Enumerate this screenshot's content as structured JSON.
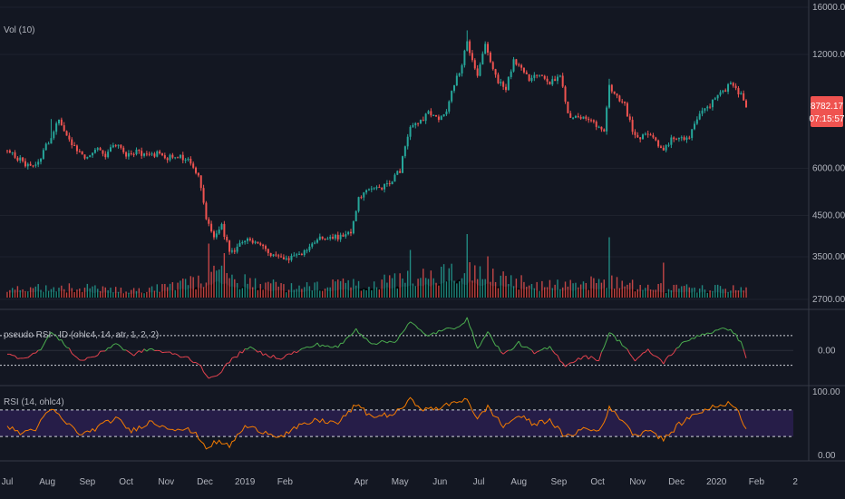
{
  "colors": {
    "background": "#131722",
    "grid": "#1e222d",
    "pane_border": "#363a45",
    "up": "#26a69a",
    "down": "#ef5350",
    "volume_shadow": "#000000",
    "pseudo_up": "#4caf50",
    "pseudo_down": "#e5434f",
    "rsi_line": "#f57c00",
    "rsi_band": "#2a1f4f",
    "level_line": "#d1d4dc",
    "axis_text": "#b2b5be",
    "badge": "#ef5350"
  },
  "chart_data": [
    {
      "type": "candlestick",
      "pane": "price",
      "title": "Vol (10)",
      "y_scale": "log",
      "y_ticks": [
        "16000.00",
        "12000.00",
        "6000.00",
        "4500.00",
        "3500.00",
        "2700.00"
      ],
      "y_tick_values": [
        16000,
        12000,
        6000,
        4500,
        3500,
        2700
      ],
      "ylim": [
        2700,
        16000
      ],
      "price_badge": "8782.17",
      "countdown_badge": "07:15:57",
      "price_path": [
        {
          "d": 0,
          "v": 6700
        },
        {
          "d": 10,
          "v": 6300
        },
        {
          "d": 18,
          "v": 6050
        },
        {
          "d": 26,
          "v": 6400
        },
        {
          "d": 34,
          "v": 7300
        },
        {
          "d": 40,
          "v": 8050
        },
        {
          "d": 46,
          "v": 7450
        },
        {
          "d": 52,
          "v": 6800
        },
        {
          "d": 60,
          "v": 6450
        },
        {
          "d": 68,
          "v": 6750
        },
        {
          "d": 76,
          "v": 6500
        },
        {
          "d": 84,
          "v": 7000
        },
        {
          "d": 92,
          "v": 6550
        },
        {
          "d": 100,
          "v": 6650
        },
        {
          "d": 108,
          "v": 6500
        },
        {
          "d": 116,
          "v": 6550
        },
        {
          "d": 124,
          "v": 6400
        },
        {
          "d": 132,
          "v": 6450
        },
        {
          "d": 140,
          "v": 6300
        },
        {
          "d": 148,
          "v": 5800
        },
        {
          "d": 154,
          "v": 4400
        },
        {
          "d": 160,
          "v": 3900
        },
        {
          "d": 166,
          "v": 4200
        },
        {
          "d": 172,
          "v": 3600
        },
        {
          "d": 178,
          "v": 3700
        },
        {
          "d": 186,
          "v": 3900
        },
        {
          "d": 194,
          "v": 3750
        },
        {
          "d": 202,
          "v": 3600
        },
        {
          "d": 210,
          "v": 3500
        },
        {
          "d": 218,
          "v": 3450
        },
        {
          "d": 226,
          "v": 3550
        },
        {
          "d": 234,
          "v": 3750
        },
        {
          "d": 242,
          "v": 3900
        },
        {
          "d": 250,
          "v": 3950
        },
        {
          "d": 258,
          "v": 3950
        },
        {
          "d": 266,
          "v": 4050
        },
        {
          "d": 272,
          "v": 5000
        },
        {
          "d": 280,
          "v": 5250
        },
        {
          "d": 288,
          "v": 5300
        },
        {
          "d": 296,
          "v": 5500
        },
        {
          "d": 304,
          "v": 5900
        },
        {
          "d": 312,
          "v": 7800
        },
        {
          "d": 318,
          "v": 7900
        },
        {
          "d": 326,
          "v": 8400
        },
        {
          "d": 334,
          "v": 8000
        },
        {
          "d": 340,
          "v": 8600
        },
        {
          "d": 346,
          "v": 10000
        },
        {
          "d": 352,
          "v": 11200
        },
        {
          "d": 356,
          "v": 13200
        },
        {
          "d": 360,
          "v": 11400
        },
        {
          "d": 364,
          "v": 10400
        },
        {
          "d": 370,
          "v": 12600
        },
        {
          "d": 374,
          "v": 11400
        },
        {
          "d": 380,
          "v": 10200
        },
        {
          "d": 386,
          "v": 9800
        },
        {
          "d": 392,
          "v": 11600
        },
        {
          "d": 398,
          "v": 11100
        },
        {
          "d": 404,
          "v": 10400
        },
        {
          "d": 412,
          "v": 10500
        },
        {
          "d": 420,
          "v": 10100
        },
        {
          "d": 428,
          "v": 10400
        },
        {
          "d": 434,
          "v": 8300
        },
        {
          "d": 442,
          "v": 8200
        },
        {
          "d": 450,
          "v": 8000
        },
        {
          "d": 456,
          "v": 7850
        },
        {
          "d": 462,
          "v": 7400
        },
        {
          "d": 466,
          "v": 9800
        },
        {
          "d": 472,
          "v": 9200
        },
        {
          "d": 478,
          "v": 8800
        },
        {
          "d": 484,
          "v": 7500
        },
        {
          "d": 490,
          "v": 7200
        },
        {
          "d": 496,
          "v": 7500
        },
        {
          "d": 502,
          "v": 7100
        },
        {
          "d": 508,
          "v": 6700
        },
        {
          "d": 514,
          "v": 7200
        },
        {
          "d": 520,
          "v": 7300
        },
        {
          "d": 528,
          "v": 7200
        },
        {
          "d": 534,
          "v": 8100
        },
        {
          "d": 542,
          "v": 8700
        },
        {
          "d": 550,
          "v": 9300
        },
        {
          "d": 556,
          "v": 9700
        },
        {
          "d": 560,
          "v": 10200
        },
        {
          "d": 564,
          "v": 9700
        },
        {
          "d": 568,
          "v": 9400
        },
        {
          "d": 572,
          "v": 8750
        }
      ],
      "spikes": [
        {
          "d": 34,
          "v": 8100
        },
        {
          "d": 356,
          "v": 13900
        },
        {
          "d": 370,
          "v": 13000
        },
        {
          "d": 466,
          "v": 10350
        },
        {
          "d": 508,
          "v": 6400
        }
      ]
    },
    {
      "type": "bar",
      "pane": "volume",
      "overlay_on": "price",
      "relative_levels": [
        {
          "d": 0,
          "v": 0.15
        },
        {
          "d": 40,
          "v": 0.2
        },
        {
          "d": 100,
          "v": 0.12
        },
        {
          "d": 150,
          "v": 0.3
        },
        {
          "d": 160,
          "v": 0.45
        },
        {
          "d": 180,
          "v": 0.3
        },
        {
          "d": 220,
          "v": 0.18
        },
        {
          "d": 270,
          "v": 0.25
        },
        {
          "d": 320,
          "v": 0.35
        },
        {
          "d": 350,
          "v": 0.5
        },
        {
          "d": 372,
          "v": 0.38
        },
        {
          "d": 420,
          "v": 0.22
        },
        {
          "d": 466,
          "v": 0.3
        },
        {
          "d": 500,
          "v": 0.18
        },
        {
          "d": 572,
          "v": 0.15
        }
      ],
      "volume_spikes": [
        {
          "d": 156,
          "v": 0.85
        },
        {
          "d": 168,
          "v": 0.7
        },
        {
          "d": 312,
          "v": 0.75
        },
        {
          "d": 356,
          "v": 1.0
        },
        {
          "d": 372,
          "v": 0.65
        },
        {
          "d": 466,
          "v": 0.95
        },
        {
          "d": 508,
          "v": 0.55
        }
      ]
    },
    {
      "type": "line",
      "pane": "pseudo_rsi",
      "title": "pseudo RSI - ID (ohlc4, 14, atr, 1, 2, 2)",
      "y_ticks": [
        "0.00"
      ],
      "zero_level": 0,
      "upper_level": 1,
      "lower_level": -1,
      "ylim": [
        -2.3,
        2.7
      ],
      "path": [
        {
          "d": 0,
          "v": -0.3
        },
        {
          "d": 12,
          "v": -0.5
        },
        {
          "d": 24,
          "v": -0.1
        },
        {
          "d": 34,
          "v": 1.2
        },
        {
          "d": 46,
          "v": 0.3
        },
        {
          "d": 56,
          "v": -0.7
        },
        {
          "d": 70,
          "v": -0.3
        },
        {
          "d": 84,
          "v": 0.5
        },
        {
          "d": 96,
          "v": -0.3
        },
        {
          "d": 110,
          "v": 0.1
        },
        {
          "d": 126,
          "v": -0.2
        },
        {
          "d": 140,
          "v": -0.5
        },
        {
          "d": 150,
          "v": -1.0
        },
        {
          "d": 156,
          "v": -2.0
        },
        {
          "d": 164,
          "v": -1.5
        },
        {
          "d": 174,
          "v": -0.6
        },
        {
          "d": 186,
          "v": 0.2
        },
        {
          "d": 200,
          "v": -0.3
        },
        {
          "d": 212,
          "v": -0.5
        },
        {
          "d": 226,
          "v": 0.0
        },
        {
          "d": 240,
          "v": 0.4
        },
        {
          "d": 256,
          "v": 0.2
        },
        {
          "d": 270,
          "v": 1.4
        },
        {
          "d": 282,
          "v": 0.5
        },
        {
          "d": 300,
          "v": 0.6
        },
        {
          "d": 312,
          "v": 1.9
        },
        {
          "d": 324,
          "v": 1.0
        },
        {
          "d": 336,
          "v": 1.3
        },
        {
          "d": 348,
          "v": 1.6
        },
        {
          "d": 356,
          "v": 2.1
        },
        {
          "d": 364,
          "v": 0.2
        },
        {
          "d": 372,
          "v": 1.2
        },
        {
          "d": 384,
          "v": -0.3
        },
        {
          "d": 396,
          "v": 0.5
        },
        {
          "d": 408,
          "v": -0.2
        },
        {
          "d": 420,
          "v": 0.2
        },
        {
          "d": 432,
          "v": -1.0
        },
        {
          "d": 446,
          "v": -0.4
        },
        {
          "d": 458,
          "v": -0.6
        },
        {
          "d": 466,
          "v": 1.2
        },
        {
          "d": 478,
          "v": 0.3
        },
        {
          "d": 486,
          "v": -0.7
        },
        {
          "d": 496,
          "v": 0.0
        },
        {
          "d": 508,
          "v": -0.8
        },
        {
          "d": 520,
          "v": 0.3
        },
        {
          "d": 534,
          "v": 1.0
        },
        {
          "d": 548,
          "v": 1.3
        },
        {
          "d": 560,
          "v": 1.5
        },
        {
          "d": 568,
          "v": 0.5
        },
        {
          "d": 572,
          "v": -0.4
        }
      ]
    },
    {
      "type": "line",
      "pane": "rsi",
      "title": "RSI (14, ohlc4)",
      "y_ticks": [
        "100.00",
        "0.00"
      ],
      "upper_band": 70,
      "lower_band": 30,
      "ylim": [
        0,
        100
      ],
      "path": [
        {
          "d": 0,
          "v": 45
        },
        {
          "d": 10,
          "v": 35
        },
        {
          "d": 22,
          "v": 42
        },
        {
          "d": 34,
          "v": 72
        },
        {
          "d": 46,
          "v": 50
        },
        {
          "d": 58,
          "v": 32
        },
        {
          "d": 70,
          "v": 44
        },
        {
          "d": 84,
          "v": 58
        },
        {
          "d": 96,
          "v": 38
        },
        {
          "d": 110,
          "v": 52
        },
        {
          "d": 124,
          "v": 44
        },
        {
          "d": 140,
          "v": 40
        },
        {
          "d": 148,
          "v": 30
        },
        {
          "d": 154,
          "v": 13
        },
        {
          "d": 162,
          "v": 22
        },
        {
          "d": 172,
          "v": 16
        },
        {
          "d": 184,
          "v": 45
        },
        {
          "d": 198,
          "v": 38
        },
        {
          "d": 212,
          "v": 30
        },
        {
          "d": 226,
          "v": 45
        },
        {
          "d": 240,
          "v": 55
        },
        {
          "d": 256,
          "v": 50
        },
        {
          "d": 270,
          "v": 78
        },
        {
          "d": 282,
          "v": 60
        },
        {
          "d": 300,
          "v": 64
        },
        {
          "d": 312,
          "v": 85
        },
        {
          "d": 324,
          "v": 70
        },
        {
          "d": 336,
          "v": 74
        },
        {
          "d": 348,
          "v": 82
        },
        {
          "d": 356,
          "v": 88
        },
        {
          "d": 364,
          "v": 55
        },
        {
          "d": 372,
          "v": 75
        },
        {
          "d": 384,
          "v": 45
        },
        {
          "d": 396,
          "v": 62
        },
        {
          "d": 408,
          "v": 48
        },
        {
          "d": 420,
          "v": 56
        },
        {
          "d": 432,
          "v": 28
        },
        {
          "d": 446,
          "v": 42
        },
        {
          "d": 458,
          "v": 38
        },
        {
          "d": 466,
          "v": 72
        },
        {
          "d": 478,
          "v": 52
        },
        {
          "d": 486,
          "v": 30
        },
        {
          "d": 496,
          "v": 42
        },
        {
          "d": 508,
          "v": 25
        },
        {
          "d": 520,
          "v": 48
        },
        {
          "d": 534,
          "v": 66
        },
        {
          "d": 548,
          "v": 75
        },
        {
          "d": 560,
          "v": 82
        },
        {
          "d": 568,
          "v": 60
        },
        {
          "d": 572,
          "v": 40
        }
      ]
    }
  ],
  "time_axis": {
    "labels": [
      {
        "label": "Jul",
        "d": 0
      },
      {
        "label": "Aug",
        "d": 31
      },
      {
        "label": "Sep",
        "d": 62
      },
      {
        "label": "Oct",
        "d": 92
      },
      {
        "label": "Nov",
        "d": 123
      },
      {
        "label": "Dec",
        "d": 153
      },
      {
        "label": "2019",
        "d": 184
      },
      {
        "label": "Feb",
        "d": 215
      },
      {
        "label": "Apr",
        "d": 274
      },
      {
        "label": "May",
        "d": 304
      },
      {
        "label": "Jun",
        "d": 335
      },
      {
        "label": "Jul",
        "d": 365
      },
      {
        "label": "Aug",
        "d": 396
      },
      {
        "label": "Sep",
        "d": 427
      },
      {
        "label": "Oct",
        "d": 457
      },
      {
        "label": "Nov",
        "d": 488
      },
      {
        "label": "Dec",
        "d": 518
      },
      {
        "label": "2020",
        "d": 549
      },
      {
        "label": "Feb",
        "d": 580
      },
      {
        "label": "2",
        "d": 610
      }
    ]
  }
}
